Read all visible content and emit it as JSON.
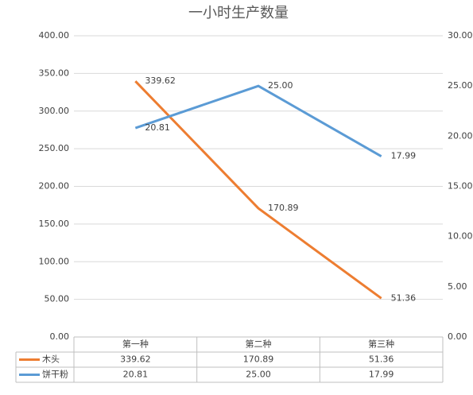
{
  "chart_data": {
    "type": "line",
    "title": "一小时生产数量",
    "categories": [
      "第一种",
      "第二种",
      "第三种"
    ],
    "series": [
      {
        "name": "木头",
        "color": "#ed7d31",
        "values": [
          339.62,
          170.89,
          51.36
        ],
        "value_labels": [
          "339.62",
          "170.89",
          "51.36"
        ]
      },
      {
        "name": "饼干粉",
        "color": "#5b9bd5",
        "axis": "y2",
        "values": [
          20.81,
          25.0,
          17.99
        ],
        "value_labels": [
          "20.81",
          "25.00",
          "17.99"
        ]
      }
    ],
    "ylim": [
      0,
      400
    ],
    "yticks": [
      {
        "value": 0,
        "label": "0.00"
      },
      {
        "value": 50,
        "label": "50.00"
      },
      {
        "value": 100,
        "label": "100.00"
      },
      {
        "value": 150,
        "label": "150.00"
      },
      {
        "value": 200,
        "label": "200.00"
      },
      {
        "value": 250,
        "label": "250.00"
      },
      {
        "value": 300,
        "label": "300.00"
      },
      {
        "value": 350,
        "label": "350.00"
      },
      {
        "value": 400,
        "label": "400.00"
      }
    ],
    "y2lim": [
      0,
      30
    ],
    "y2ticks": [
      {
        "value": 0,
        "label": "0.00"
      },
      {
        "value": 5,
        "label": "5.00"
      },
      {
        "value": 10,
        "label": "10.00"
      },
      {
        "value": 15,
        "label": "15.00"
      },
      {
        "value": 20,
        "label": "20.00"
      },
      {
        "value": 25,
        "label": "25.00"
      },
      {
        "value": 30,
        "label": "30.00"
      }
    ],
    "grid": true
  }
}
